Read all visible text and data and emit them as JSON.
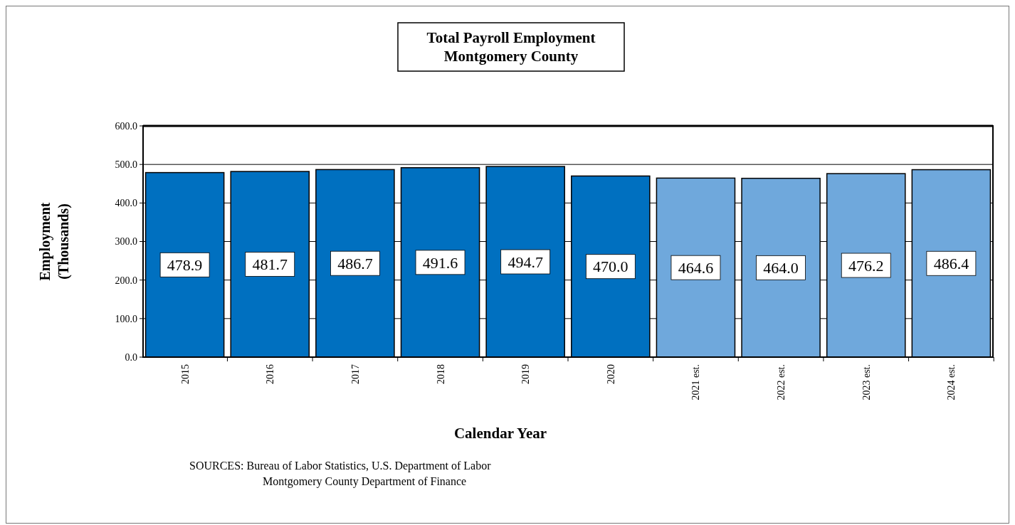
{
  "chart_data": {
    "type": "bar",
    "title": "Total Payroll Employment\nMontgomery County",
    "xlabel": "Calendar Year",
    "ylabel": "Employment\n(Thousands)",
    "categories": [
      "2015",
      "2016",
      "2017",
      "2018",
      "2019",
      "2020",
      "2021 est.",
      "2022 est.",
      "2023 est.",
      "2024 est."
    ],
    "values": [
      478.9,
      481.7,
      486.7,
      491.6,
      494.7,
      470.0,
      464.6,
      464.0,
      476.2,
      486.4
    ],
    "colors": [
      "#0070c0",
      "#0070c0",
      "#0070c0",
      "#0070c0",
      "#0070c0",
      "#0070c0",
      "#6fa8dc",
      "#6fa8dc",
      "#6fa8dc",
      "#6fa8dc"
    ],
    "value_labels": [
      "478.9",
      "481.7",
      "486.7",
      "491.6",
      "494.7",
      "470.0",
      "464.6",
      "464.0",
      "476.2",
      "486.4"
    ],
    "ylim": [
      0,
      600
    ],
    "yticks": [
      {
        "value": 0,
        "label": "0.0"
      },
      {
        "value": 100,
        "label": "100.0"
      },
      {
        "value": 200,
        "label": "200.0"
      },
      {
        "value": 300,
        "label": "300.0"
      },
      {
        "value": 400,
        "label": "400.0"
      },
      {
        "value": 500,
        "label": "500.0"
      },
      {
        "value": 600,
        "label": "600.0"
      }
    ],
    "grid": "y",
    "annotations": [
      "SOURCES:  Bureau of Labor Statistics, U.S. Department of Labor",
      "Montgomery County Department of Finance"
    ]
  }
}
